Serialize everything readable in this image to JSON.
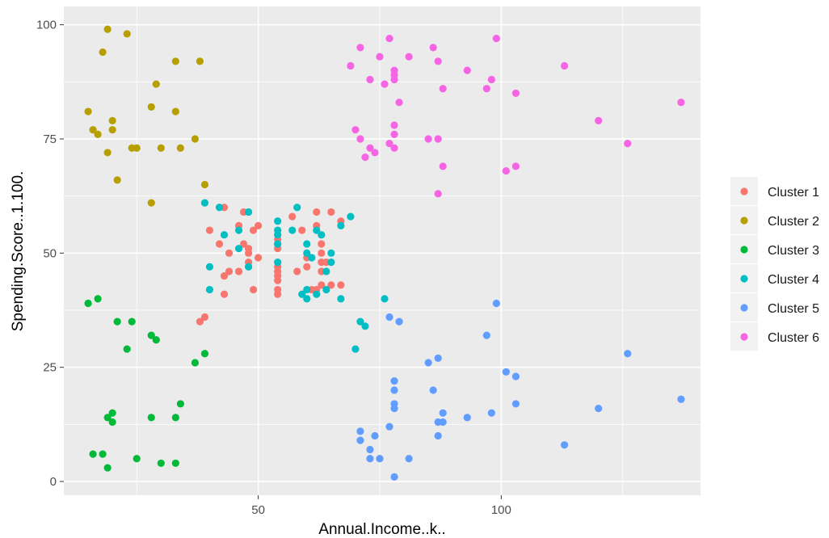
{
  "chart_data": {
    "type": "scatter",
    "xlabel": "Annual.Income..k..",
    "ylabel": "Spending.Score..1.100.",
    "xlim": [
      10,
      141
    ],
    "ylim": [
      -3,
      104
    ],
    "x_ticks": [
      50,
      100
    ],
    "y_ticks": [
      0,
      25,
      50,
      75,
      100
    ],
    "grid": true,
    "legend_position": "right",
    "series": [
      {
        "name": "Cluster 1",
        "color": "#F8766D",
        "points": [
          [
            38,
            35
          ],
          [
            39,
            36
          ],
          [
            40,
            55
          ],
          [
            42,
            52
          ],
          [
            43,
            60
          ],
          [
            43,
            45
          ],
          [
            43,
            41
          ],
          [
            44,
            50
          ],
          [
            44,
            46
          ],
          [
            46,
            46
          ],
          [
            46,
            56
          ],
          [
            47,
            59
          ],
          [
            47,
            52
          ],
          [
            48,
            51
          ],
          [
            48,
            50
          ],
          [
            48,
            48
          ],
          [
            48,
            47
          ],
          [
            49,
            55
          ],
          [
            49,
            42
          ],
          [
            50,
            49
          ],
          [
            50,
            56
          ],
          [
            54,
            53
          ],
          [
            54,
            52
          ],
          [
            54,
            51
          ],
          [
            54,
            47
          ],
          [
            54,
            46
          ],
          [
            54,
            45
          ],
          [
            54,
            44
          ],
          [
            54,
            42
          ],
          [
            54,
            41
          ],
          [
            57,
            58
          ],
          [
            58,
            46
          ],
          [
            59,
            55
          ],
          [
            60,
            49
          ],
          [
            60,
            47
          ],
          [
            61,
            42
          ],
          [
            62,
            59
          ],
          [
            62,
            56
          ],
          [
            62,
            42
          ],
          [
            63,
            52
          ],
          [
            63,
            50
          ],
          [
            63,
            48
          ],
          [
            63,
            46
          ],
          [
            63,
            43
          ],
          [
            64,
            48
          ],
          [
            65,
            59
          ],
          [
            65,
            43
          ],
          [
            67,
            57
          ],
          [
            67,
            43
          ]
        ]
      },
      {
        "name": "Cluster 2",
        "color": "#B79F00",
        "points": [
          [
            15,
            81
          ],
          [
            16,
            77
          ],
          [
            17,
            76
          ],
          [
            18,
            94
          ],
          [
            19,
            99
          ],
          [
            19,
            72
          ],
          [
            20,
            79
          ],
          [
            20,
            77
          ],
          [
            21,
            66
          ],
          [
            23,
            98
          ],
          [
            24,
            73
          ],
          [
            25,
            73
          ],
          [
            28,
            61
          ],
          [
            28,
            82
          ],
          [
            29,
            87
          ],
          [
            30,
            73
          ],
          [
            33,
            92
          ],
          [
            33,
            81
          ],
          [
            34,
            73
          ],
          [
            37,
            75
          ],
          [
            38,
            92
          ],
          [
            39,
            65
          ]
        ]
      },
      {
        "name": "Cluster 3",
        "color": "#00BA38",
        "points": [
          [
            15,
            39
          ],
          [
            16,
            6
          ],
          [
            17,
            40
          ],
          [
            18,
            6
          ],
          [
            19,
            3
          ],
          [
            19,
            14
          ],
          [
            20,
            15
          ],
          [
            20,
            13
          ],
          [
            21,
            35
          ],
          [
            23,
            29
          ],
          [
            24,
            35
          ],
          [
            25,
            5
          ],
          [
            28,
            14
          ],
          [
            28,
            32
          ],
          [
            29,
            31
          ],
          [
            30,
            4
          ],
          [
            33,
            4
          ],
          [
            33,
            14
          ],
          [
            34,
            17
          ],
          [
            37,
            26
          ],
          [
            39,
            28
          ]
        ]
      },
      {
        "name": "Cluster 4",
        "color": "#00BFC4",
        "points": [
          [
            39,
            61
          ],
          [
            40,
            47
          ],
          [
            40,
            42
          ],
          [
            42,
            60
          ],
          [
            43,
            54
          ],
          [
            46,
            55
          ],
          [
            46,
            51
          ],
          [
            48,
            59
          ],
          [
            48,
            47
          ],
          [
            54,
            57
          ],
          [
            54,
            55
          ],
          [
            54,
            54
          ],
          [
            54,
            52
          ],
          [
            54,
            48
          ],
          [
            57,
            55
          ],
          [
            58,
            60
          ],
          [
            59,
            41
          ],
          [
            60,
            52
          ],
          [
            60,
            50
          ],
          [
            60,
            42
          ],
          [
            60,
            40
          ],
          [
            61,
            49
          ],
          [
            62,
            55
          ],
          [
            62,
            41
          ],
          [
            63,
            54
          ],
          [
            64,
            46
          ],
          [
            64,
            42
          ],
          [
            65,
            50
          ],
          [
            65,
            48
          ],
          [
            67,
            56
          ],
          [
            67,
            40
          ],
          [
            69,
            58
          ],
          [
            70,
            29
          ],
          [
            71,
            35
          ],
          [
            72,
            34
          ],
          [
            76,
            40
          ]
        ]
      },
      {
        "name": "Cluster 5",
        "color": "#619CFF",
        "points": [
          [
            71,
            11
          ],
          [
            71,
            9
          ],
          [
            73,
            7
          ],
          [
            73,
            5
          ],
          [
            74,
            10
          ],
          [
            75,
            5
          ],
          [
            77,
            36
          ],
          [
            77,
            12
          ],
          [
            78,
            22
          ],
          [
            78,
            20
          ],
          [
            78,
            17
          ],
          [
            78,
            16
          ],
          [
            78,
            1
          ],
          [
            79,
            35
          ],
          [
            81,
            5
          ],
          [
            85,
            26
          ],
          [
            86,
            20
          ],
          [
            87,
            27
          ],
          [
            87,
            13
          ],
          [
            87,
            10
          ],
          [
            88,
            15
          ],
          [
            88,
            13
          ],
          [
            93,
            14
          ],
          [
            97,
            32
          ],
          [
            98,
            15
          ],
          [
            99,
            39
          ],
          [
            101,
            24
          ],
          [
            103,
            23
          ],
          [
            103,
            17
          ],
          [
            113,
            8
          ],
          [
            120,
            16
          ],
          [
            126,
            28
          ],
          [
            137,
            18
          ]
        ]
      },
      {
        "name": "Cluster 6",
        "color": "#F564E3",
        "points": [
          [
            69,
            91
          ],
          [
            70,
            77
          ],
          [
            71,
            95
          ],
          [
            71,
            75
          ],
          [
            72,
            71
          ],
          [
            73,
            88
          ],
          [
            73,
            73
          ],
          [
            74,
            72
          ],
          [
            75,
            93
          ],
          [
            76,
            87
          ],
          [
            77,
            97
          ],
          [
            77,
            74
          ],
          [
            78,
            90
          ],
          [
            78,
            89
          ],
          [
            78,
            88
          ],
          [
            78,
            78
          ],
          [
            78,
            76
          ],
          [
            78,
            73
          ],
          [
            79,
            83
          ],
          [
            81,
            93
          ],
          [
            85,
            75
          ],
          [
            86,
            95
          ],
          [
            87,
            92
          ],
          [
            87,
            75
          ],
          [
            87,
            63
          ],
          [
            88,
            86
          ],
          [
            88,
            69
          ],
          [
            93,
            90
          ],
          [
            97,
            86
          ],
          [
            98,
            88
          ],
          [
            99,
            97
          ],
          [
            101,
            68
          ],
          [
            103,
            85
          ],
          [
            103,
            69
          ],
          [
            113,
            91
          ],
          [
            120,
            79
          ],
          [
            126,
            74
          ],
          [
            137,
            83
          ]
        ]
      }
    ]
  }
}
